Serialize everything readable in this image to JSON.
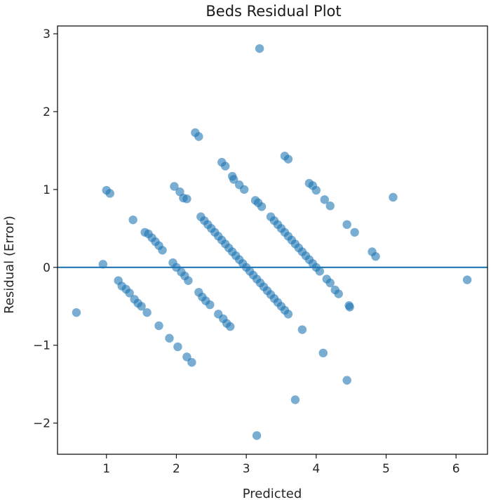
{
  "chart_data": {
    "type": "scatter",
    "title": "Beds Residual Plot",
    "xlabel": "Predicted",
    "ylabel": "Residual (Error)",
    "xlim": [
      0.3,
      6.45
    ],
    "ylim": [
      -2.4,
      3.1
    ],
    "x_ticks": [
      1,
      2,
      3,
      4,
      5,
      6
    ],
    "y_ticks": [
      -2,
      -1,
      0,
      1,
      2,
      3
    ],
    "x_tick_labels": [
      "1",
      "2",
      "3",
      "4",
      "5",
      "6"
    ],
    "y_tick_labels": [
      "−2",
      "−1",
      "0",
      "1",
      "2",
      "3"
    ],
    "reference_line_y": 0,
    "marker_color": "#1f77b4",
    "marker_alpha": 0.6,
    "grid": false,
    "series": [
      {
        "points": [
          [
            0.57,
            -0.58
          ],
          [
            0.95,
            0.04
          ],
          [
            1.0,
            0.99
          ],
          [
            1.05,
            0.95
          ],
          [
            1.17,
            -0.17
          ],
          [
            1.22,
            -0.24
          ],
          [
            1.28,
            -0.28
          ],
          [
            1.33,
            -0.33
          ],
          [
            1.38,
            0.61
          ],
          [
            1.4,
            -0.41
          ],
          [
            1.45,
            -0.46
          ],
          [
            1.5,
            -0.5
          ],
          [
            1.55,
            0.45
          ],
          [
            1.58,
            -0.58
          ],
          [
            1.6,
            0.43
          ],
          [
            1.65,
            0.38
          ],
          [
            1.7,
            0.33
          ],
          [
            1.75,
            -0.75
          ],
          [
            1.75,
            0.28
          ],
          [
            1.8,
            0.22
          ],
          [
            1.9,
            -0.91
          ],
          [
            1.97,
            1.04
          ],
          [
            1.95,
            0.06
          ],
          [
            2.0,
            0.0
          ],
          [
            2.02,
            -1.02
          ],
          [
            2.05,
            0.97
          ],
          [
            2.07,
            -0.06
          ],
          [
            2.1,
            0.89
          ],
          [
            2.12,
            -0.11
          ],
          [
            2.15,
            0.88
          ],
          [
            2.15,
            -1.15
          ],
          [
            2.17,
            -0.17
          ],
          [
            2.22,
            -1.22
          ],
          [
            2.27,
            1.73
          ],
          [
            2.32,
            -0.32
          ],
          [
            2.32,
            1.68
          ],
          [
            2.35,
            0.65
          ],
          [
            2.37,
            -0.38
          ],
          [
            2.4,
            0.6
          ],
          [
            2.42,
            -0.43
          ],
          [
            2.45,
            0.55
          ],
          [
            2.48,
            -0.48
          ],
          [
            2.5,
            0.5
          ],
          [
            2.55,
            0.45
          ],
          [
            2.6,
            -0.6
          ],
          [
            2.6,
            0.4
          ],
          [
            2.65,
            1.35
          ],
          [
            2.65,
            0.35
          ],
          [
            2.67,
            -0.66
          ],
          [
            2.7,
            1.3
          ],
          [
            2.7,
            0.3
          ],
          [
            2.72,
            -0.72
          ],
          [
            2.75,
            0.25
          ],
          [
            2.77,
            -0.76
          ],
          [
            2.8,
            1.17
          ],
          [
            2.8,
            0.2
          ],
          [
            2.82,
            1.13
          ],
          [
            2.85,
            0.15
          ],
          [
            2.9,
            1.06
          ],
          [
            2.9,
            0.1
          ],
          [
            2.95,
            0.05
          ],
          [
            2.97,
            1.0
          ],
          [
            3.0,
            0.0
          ],
          [
            3.05,
            -0.05
          ],
          [
            3.1,
            -0.1
          ],
          [
            3.13,
            0.86
          ],
          [
            3.15,
            -0.15
          ],
          [
            3.17,
            0.83
          ],
          [
            3.15,
            -2.16
          ],
          [
            3.19,
            2.81
          ],
          [
            3.2,
            -0.2
          ],
          [
            3.22,
            0.78
          ],
          [
            3.25,
            -0.25
          ],
          [
            3.3,
            -0.3
          ],
          [
            3.35,
            0.65
          ],
          [
            3.35,
            -0.35
          ],
          [
            3.4,
            0.6
          ],
          [
            3.4,
            -0.4
          ],
          [
            3.45,
            0.55
          ],
          [
            3.45,
            -0.45
          ],
          [
            3.5,
            0.5
          ],
          [
            3.5,
            -0.5
          ],
          [
            3.55,
            1.43
          ],
          [
            3.55,
            0.45
          ],
          [
            3.55,
            -0.55
          ],
          [
            3.6,
            1.39
          ],
          [
            3.6,
            0.4
          ],
          [
            3.6,
            -0.6
          ],
          [
            3.65,
            0.35
          ],
          [
            3.7,
            -1.7
          ],
          [
            3.7,
            0.3
          ],
          [
            3.75,
            0.25
          ],
          [
            3.8,
            -0.8
          ],
          [
            3.8,
            0.2
          ],
          [
            3.85,
            0.15
          ],
          [
            3.9,
            1.08
          ],
          [
            3.9,
            0.1
          ],
          [
            3.95,
            1.05
          ],
          [
            3.95,
            0.05
          ],
          [
            4.0,
            0.99
          ],
          [
            4.0,
            0.0
          ],
          [
            4.05,
            -0.05
          ],
          [
            4.1,
            -1.1
          ],
          [
            4.12,
            0.87
          ],
          [
            4.15,
            -0.15
          ],
          [
            4.2,
            0.79
          ],
          [
            4.2,
            -0.2
          ],
          [
            4.27,
            -0.29
          ],
          [
            4.32,
            -0.34
          ],
          [
            4.44,
            -1.45
          ],
          [
            4.44,
            0.55
          ],
          [
            4.47,
            -0.49
          ],
          [
            4.48,
            -0.51
          ],
          [
            4.55,
            0.45
          ],
          [
            4.8,
            0.2
          ],
          [
            4.85,
            0.14
          ],
          [
            5.1,
            0.9
          ],
          [
            6.16,
            -0.16
          ]
        ]
      }
    ]
  }
}
